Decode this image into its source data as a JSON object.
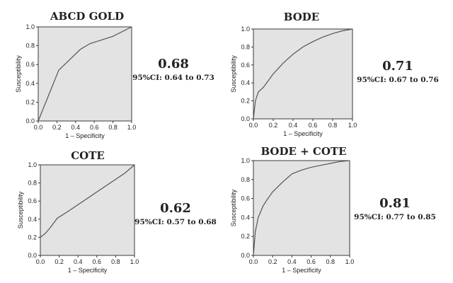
{
  "chart_data": [
    {
      "type": "line",
      "title": "ABCD GOLD",
      "auc": "0.68",
      "ci": "95%CI: 0.64 to 0.73",
      "xlabel": "1 – Specificity",
      "ylabel": "Susceptibility",
      "xlim": [
        0,
        1
      ],
      "ylim": [
        0,
        1
      ],
      "ticks": [
        "0.0",
        "0.2",
        "0.4",
        "0.6",
        "0.8",
        "1.0"
      ],
      "grid": false,
      "x": [
        0.0,
        0.22,
        0.45,
        0.55,
        0.8,
        1.0
      ],
      "y": [
        0.0,
        0.54,
        0.76,
        0.82,
        0.9,
        1.0
      ]
    },
    {
      "type": "line",
      "title": "BODE",
      "auc": "0.71",
      "ci": "95%CI: 0.67 to 0.76",
      "xlabel": "1 – Specificity",
      "ylabel": "Susceptibility",
      "xlim": [
        0,
        1
      ],
      "ylim": [
        0,
        1
      ],
      "ticks": [
        "0.0",
        "0.2",
        "0.4",
        "0.6",
        "0.8",
        "1.0"
      ],
      "grid": false,
      "x": [
        0.0,
        0.02,
        0.05,
        0.1,
        0.2,
        0.3,
        0.4,
        0.5,
        0.6,
        0.7,
        0.8,
        0.9,
        1.0
      ],
      "y": [
        0.0,
        0.2,
        0.3,
        0.35,
        0.5,
        0.62,
        0.72,
        0.8,
        0.86,
        0.91,
        0.95,
        0.98,
        1.0
      ]
    },
    {
      "type": "line",
      "title": "COTE",
      "auc": "0.62",
      "ci": "95%CI: 0.57 to 0.68",
      "xlabel": "1 – Specificity",
      "ylabel": "Susceptibility",
      "xlim": [
        0,
        1
      ],
      "ylim": [
        0,
        1
      ],
      "ticks": [
        "0.0",
        "0.2",
        "0.4",
        "0.6",
        "0.8",
        "1.0"
      ],
      "grid": false,
      "x": [
        0.0,
        0.05,
        0.1,
        0.18,
        0.3,
        0.5,
        0.7,
        0.9,
        1.0
      ],
      "y": [
        0.2,
        0.24,
        0.3,
        0.41,
        0.49,
        0.63,
        0.77,
        0.91,
        1.0
      ]
    },
    {
      "type": "line",
      "title": "BODE + COTE",
      "auc": "0.81",
      "ci": "95%CI: 0.77 to 0.85",
      "xlabel": "1 – Specificity",
      "ylabel": "Susceptibility",
      "xlim": [
        0,
        1
      ],
      "ylim": [
        0,
        1
      ],
      "ticks": [
        "0.0",
        "0.2",
        "0.4",
        "0.6",
        "0.8",
        "1.0"
      ],
      "grid": false,
      "x": [
        0.0,
        0.02,
        0.05,
        0.1,
        0.15,
        0.2,
        0.3,
        0.4,
        0.5,
        0.6,
        0.7,
        0.8,
        0.9,
        1.0
      ],
      "y": [
        0.0,
        0.25,
        0.4,
        0.52,
        0.6,
        0.67,
        0.77,
        0.86,
        0.9,
        0.93,
        0.95,
        0.97,
        0.99,
        1.0
      ]
    }
  ]
}
